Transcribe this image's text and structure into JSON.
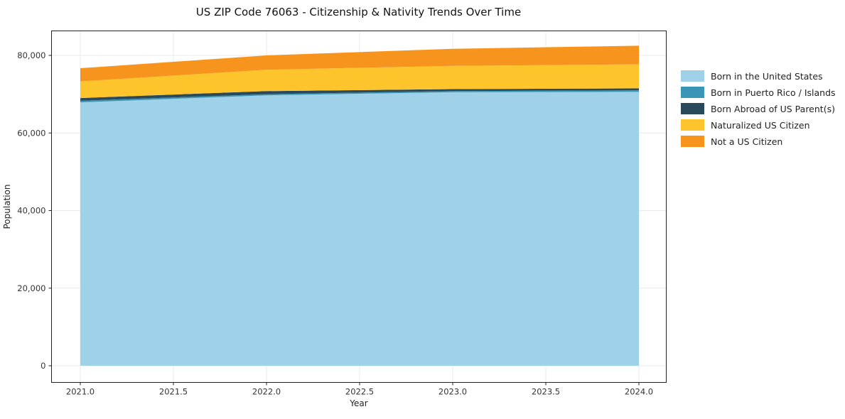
{
  "chart_data": {
    "type": "area",
    "stacked": true,
    "title": "US ZIP Code 76063 - Citizenship & Nativity Trends Over Time",
    "xlabel": "Year",
    "ylabel": "Population",
    "x": [
      2021,
      2022,
      2023,
      2024
    ],
    "series": [
      {
        "name": "Born in the United States",
        "color": "#9fd2e8",
        "values": [
          67900,
          69700,
          70500,
          70600
        ]
      },
      {
        "name": "Born in Puerto Rico / Islands",
        "color": "#3a96b4",
        "values": [
          400,
          300,
          300,
          400
        ]
      },
      {
        "name": "Born Abroad of US Parent(s)",
        "color": "#2a4a5c",
        "values": [
          700,
          800,
          500,
          500
        ]
      },
      {
        "name": "Naturalized US Citizen",
        "color": "#fdc42c",
        "values": [
          4300,
          5500,
          6000,
          6200
        ]
      },
      {
        "name": "Not a US Citizen",
        "color": "#f7941e",
        "values": [
          3400,
          3700,
          4400,
          4800
        ]
      }
    ],
    "xticks": {
      "values": [
        2021.0,
        2021.5,
        2022.0,
        2022.5,
        2023.0,
        2023.5,
        2024.0
      ],
      "labels": [
        "2021.0",
        "2021.5",
        "2022.0",
        "2022.5",
        "2023.0",
        "2023.5",
        "2024.0"
      ]
    },
    "yticks": {
      "values": [
        0,
        20000,
        40000,
        60000,
        80000
      ],
      "labels": [
        "0",
        "20,000",
        "40,000",
        "60,000",
        "80,000"
      ]
    },
    "xlim": [
      2020.84,
      2024.15
    ],
    "ylim": [
      0,
      86400
    ],
    "grid": true,
    "legend_position": "right"
  }
}
